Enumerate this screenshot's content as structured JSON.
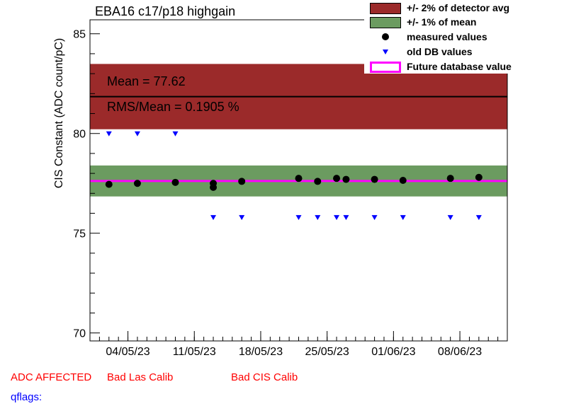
{
  "title": "EBA16 c17/p18 highgain",
  "legend": [
    {
      "label": "+/- 2% of detector avg",
      "color": "#9b2a2a",
      "symbol": "box"
    },
    {
      "label": "+/- 1% of mean",
      "color": "#6b9b60",
      "symbol": "box"
    },
    {
      "label": "measured values",
      "color": "#000000",
      "symbol": "dot"
    },
    {
      "label": "old DB values",
      "color": "#0000ff",
      "symbol": "triangle"
    },
    {
      "label": "Future database value",
      "color": "#ff00ff",
      "symbol": "outline"
    }
  ],
  "stats": {
    "mean_text": "Mean = 77.62",
    "rms_text": "RMS/Mean = 0.1905 %"
  },
  "flags": {
    "adc_affected": "ADC AFFECTED",
    "bad_las": "Bad Las Calib",
    "bad_cis": "Bad CIS Calib",
    "qflags": "qflags:"
  },
  "colors": {
    "band2": "#9b2a2a",
    "band1": "#6b9b60",
    "future": "#ff00ff",
    "measured": "#000000",
    "olddb": "#0000ff",
    "flag_red": "#ff0000",
    "flag_blue": "#0000ff"
  },
  "chart_data": {
    "type": "scatter",
    "ylabel": "CIS Constant (ADC count/pC)",
    "xlabel": "",
    "x_axis_type": "date",
    "x_ticks": [
      "04/05/23",
      "11/05/23",
      "18/05/23",
      "25/05/23",
      "01/06/23",
      "08/06/23"
    ],
    "xlim": [
      "2023-04-30",
      "2023-06-13"
    ],
    "ylim": [
      69.6,
      85.7
    ],
    "y_ticks": [
      70,
      75,
      80,
      85
    ],
    "detector_avg": 81.85,
    "detector_band_pct": 2,
    "mean": 77.62,
    "mean_band_pct": 1,
    "future_db_value": 77.62,
    "series": [
      {
        "name": "measured values",
        "points": [
          [
            "2023-05-02",
            77.45
          ],
          [
            "2023-05-05",
            77.5
          ],
          [
            "2023-05-09",
            77.55
          ],
          [
            "2023-05-13",
            77.5
          ],
          [
            "2023-05-13",
            77.3
          ],
          [
            "2023-05-16",
            77.6
          ],
          [
            "2023-05-22",
            77.75
          ],
          [
            "2023-05-24",
            77.6
          ],
          [
            "2023-05-26",
            77.75
          ],
          [
            "2023-05-27",
            77.7
          ],
          [
            "2023-05-30",
            77.7
          ],
          [
            "2023-06-02",
            77.65
          ],
          [
            "2023-06-07",
            77.75
          ],
          [
            "2023-06-10",
            77.8
          ]
        ]
      },
      {
        "name": "old DB values",
        "points": [
          [
            "2023-05-02",
            80.0
          ],
          [
            "2023-05-05",
            80.0
          ],
          [
            "2023-05-09",
            80.0
          ],
          [
            "2023-05-13",
            75.8
          ],
          [
            "2023-05-16",
            75.8
          ],
          [
            "2023-05-22",
            75.8
          ],
          [
            "2023-05-24",
            75.8
          ],
          [
            "2023-05-26",
            75.8
          ],
          [
            "2023-05-27",
            75.8
          ],
          [
            "2023-05-30",
            75.8
          ],
          [
            "2023-06-02",
            75.8
          ],
          [
            "2023-06-07",
            75.8
          ],
          [
            "2023-06-10",
            75.8
          ]
        ]
      }
    ]
  }
}
